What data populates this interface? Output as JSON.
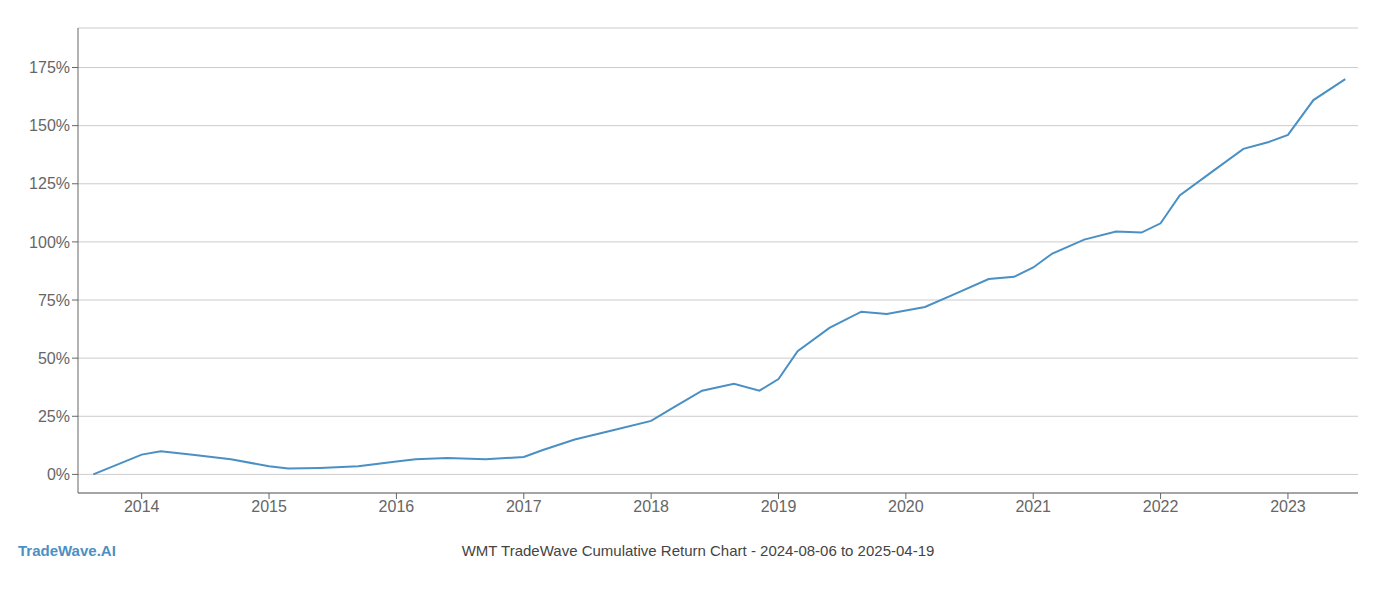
{
  "chart_data": {
    "type": "line",
    "title": "WMT TradeWave Cumulative Return Chart - 2024-08-06 to 2025-04-19",
    "annotations": [
      {
        "text": "TradeWave.AI",
        "color": "#4a90c4"
      }
    ],
    "x": [
      2013.62,
      2014.0,
      2014.15,
      2014.4,
      2014.7,
      2015.0,
      2015.15,
      2015.4,
      2015.7,
      2016.0,
      2016.15,
      2016.4,
      2016.7,
      2017.0,
      2017.15,
      2017.4,
      2017.7,
      2018.0,
      2018.15,
      2018.4,
      2018.65,
      2018.85,
      2019.0,
      2019.15,
      2019.4,
      2019.65,
      2019.85,
      2020.0,
      2020.15,
      2020.4,
      2020.65,
      2020.85,
      2021.0,
      2021.15,
      2021.4,
      2021.65,
      2021.85,
      2022.0,
      2022.15,
      2022.4,
      2022.65,
      2022.85,
      2023.0,
      2023.2,
      2023.45
    ],
    "values": [
      0.0,
      8.5,
      10.0,
      8.5,
      6.5,
      3.5,
      2.5,
      2.8,
      3.5,
      5.5,
      6.5,
      7.0,
      6.5,
      7.5,
      10.5,
      15.0,
      19.0,
      23.0,
      28.0,
      36.0,
      39.0,
      36.0,
      41.0,
      53.0,
      63.0,
      70.0,
      69.0,
      70.5,
      72.0,
      78.0,
      84.0,
      85.0,
      89.0,
      95.0,
      101.0,
      104.5,
      104.0,
      108.0,
      120.0,
      130.0,
      140.0,
      143.0,
      146.0,
      161.0,
      170.0
    ],
    "color": "#4a90c4",
    "xlim": [
      2013.5,
      2023.55
    ],
    "xticks": [
      2014,
      2015,
      2016,
      2017,
      2018,
      2019,
      2020,
      2021,
      2022,
      2023
    ],
    "ylim": [
      -8,
      192
    ],
    "yticks": [
      {
        "value": 0,
        "label": "0%"
      },
      {
        "value": 25,
        "label": "25%"
      },
      {
        "value": 50,
        "label": "50%"
      },
      {
        "value": 75,
        "label": "75%"
      },
      {
        "value": 100,
        "label": "100%"
      },
      {
        "value": 125,
        "label": "125%"
      },
      {
        "value": 150,
        "label": "150%"
      },
      {
        "value": 175,
        "label": "175%"
      }
    ],
    "grid": "y"
  }
}
